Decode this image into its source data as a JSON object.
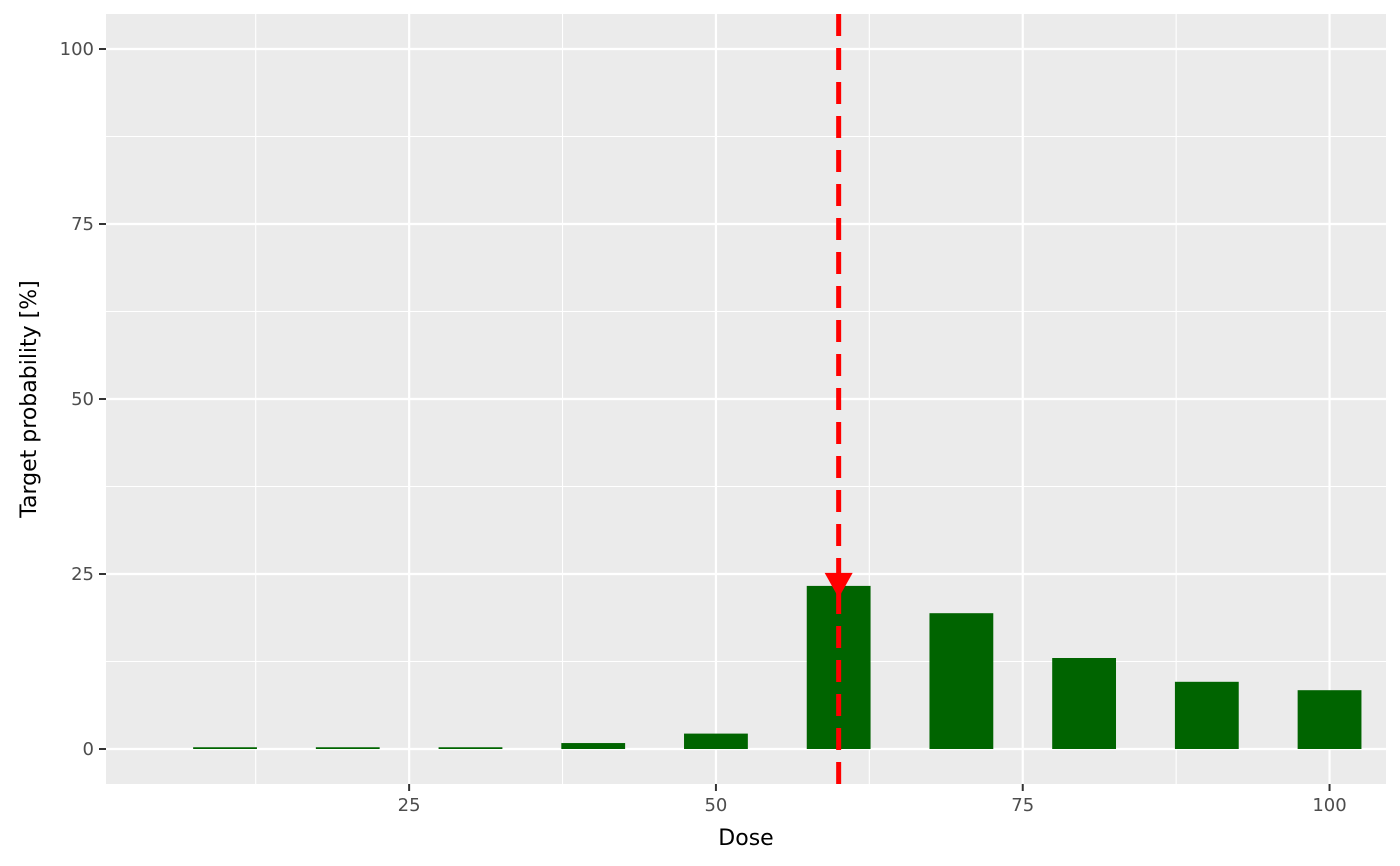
{
  "chart_data": {
    "type": "bar",
    "x": [
      10,
      20,
      30,
      40,
      50,
      60,
      70,
      80,
      90,
      100
    ],
    "values": [
      0.25,
      0.25,
      0.25,
      0.85,
      2.2,
      23.3,
      19.4,
      13.0,
      9.6,
      8.4
    ],
    "xlabel": "Dose",
    "ylabel": "Target probability [%]",
    "xlim": [
      0.3,
      104.6
    ],
    "ylim": [
      -5,
      105
    ],
    "x_ticks": [
      25,
      50,
      75,
      100
    ],
    "y_ticks": [
      0,
      25,
      50,
      75,
      100
    ],
    "bar_color": "#006400",
    "background_color": "#EBEBEB",
    "grid": true,
    "reference_line": {
      "x": 60,
      "color": "#FF0000",
      "style": "dashed"
    },
    "marker": {
      "x": 60,
      "y": 23.3,
      "shape": "down-triangle",
      "color": "#FF0000"
    }
  }
}
